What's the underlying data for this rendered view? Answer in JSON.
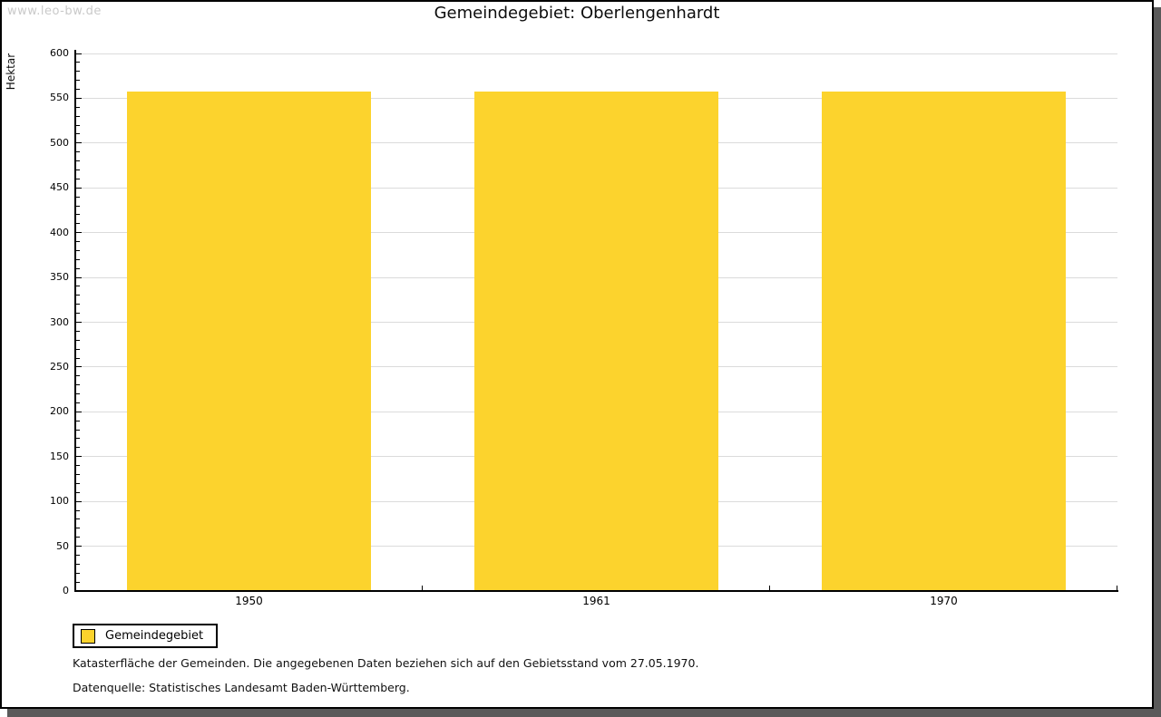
{
  "watermark": "www.leo-bw.de",
  "chart_data": {
    "type": "bar",
    "title": "Gemeindegebiet: Oberlengenhardt",
    "ylabel": "Hektar",
    "xlabel": "",
    "categories": [
      "1950",
      "1961",
      "1970"
    ],
    "series": [
      {
        "name": "Gemeindegebiet",
        "color": "#FCD32D",
        "values": [
          558,
          558,
          557
        ]
      }
    ],
    "ylim": [
      0,
      600
    ],
    "ytick_step": 50,
    "yminor_step": 10,
    "grid": true,
    "legend_position": "bottom-left"
  },
  "legend": {
    "label": "Gemeindegebiet",
    "swatch_color": "#FCD32D"
  },
  "footnotes": [
    "Katasterfläche der Gemeinden. Die angegebenen Daten beziehen sich auf den Gebietsstand vom 27.05.1970.",
    "Datenquelle: Statistisches Landesamt Baden-Württemberg."
  ],
  "colors": {
    "bar": "#FCD32D",
    "grid": "#DBDBDB",
    "axis": "#000000",
    "watermark": "#C9C9C9",
    "shadow": "#5A5A5A",
    "background": "#FFFFFF"
  }
}
